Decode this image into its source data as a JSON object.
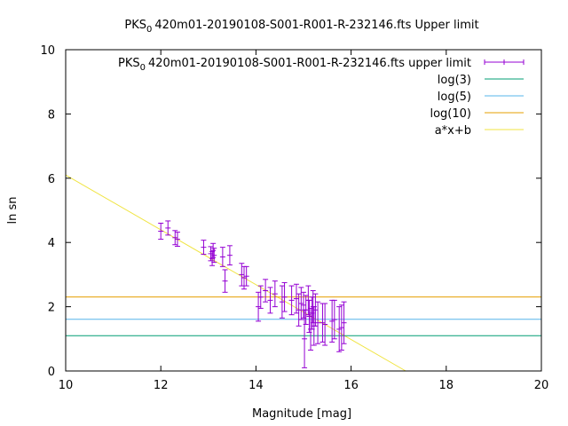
{
  "chart_data": {
    "type": "scatter",
    "title_parts": [
      "PKS",
      "0",
      "420m01-20190108-S001-R001-R-232146.fts Upper limit"
    ],
    "xlabel": "Magnitude [mag]",
    "ylabel": "ln sn",
    "xlim": [
      10,
      20
    ],
    "ylim": [
      0,
      10
    ],
    "xticks": [
      "10",
      "12",
      "14",
      "16",
      "18",
      "20"
    ],
    "yticks": [
      "0",
      "2",
      "4",
      "6",
      "8",
      "10"
    ],
    "grid": false,
    "legend_position": "top-right",
    "legend": [
      {
        "parts": [
          "PKS",
          "0",
          "420m01-20190108-S001-R001-R-232146.fts upper limit"
        ],
        "color": "#9400d3",
        "style": "errorbar"
      },
      {
        "parts": [
          "log(3)"
        ],
        "color": "#009e73",
        "style": "line"
      },
      {
        "parts": [
          "log(5)"
        ],
        "color": "#56b4e9",
        "style": "line"
      },
      {
        "parts": [
          "log(10)"
        ],
        "color": "#e69f00",
        "style": "line"
      },
      {
        "parts": [
          "a*x+b"
        ],
        "color": "#f0e442",
        "style": "line"
      }
    ],
    "series": [
      {
        "color": "#9400d3",
        "points": [
          {
            "x": 12.0,
            "y": 4.35,
            "dy": 0.25
          },
          {
            "x": 12.15,
            "y": 4.45,
            "dy": 0.22
          },
          {
            "x": 12.3,
            "y": 4.15,
            "dy": 0.22
          },
          {
            "x": 12.35,
            "y": 4.1,
            "dy": 0.22
          },
          {
            "x": 12.9,
            "y": 3.85,
            "dy": 0.22
          },
          {
            "x": 13.05,
            "y": 3.65,
            "dy": 0.22
          },
          {
            "x": 13.08,
            "y": 3.5,
            "dy": 0.22
          },
          {
            "x": 13.1,
            "y": 3.75,
            "dy": 0.22
          },
          {
            "x": 13.12,
            "y": 3.6,
            "dy": 0.22
          },
          {
            "x": 13.3,
            "y": 3.55,
            "dy": 0.3
          },
          {
            "x": 13.35,
            "y": 2.8,
            "dy": 0.35
          },
          {
            "x": 13.45,
            "y": 3.6,
            "dy": 0.3
          },
          {
            "x": 13.7,
            "y": 3.0,
            "dy": 0.35
          },
          {
            "x": 13.75,
            "y": 2.9,
            "dy": 0.35
          },
          {
            "x": 13.8,
            "y": 2.95,
            "dy": 0.3
          },
          {
            "x": 14.05,
            "y": 2.0,
            "dy": 0.45
          },
          {
            "x": 14.1,
            "y": 2.3,
            "dy": 0.35
          },
          {
            "x": 14.2,
            "y": 2.5,
            "dy": 0.35
          },
          {
            "x": 14.3,
            "y": 2.2,
            "dy": 0.4
          },
          {
            "x": 14.4,
            "y": 2.4,
            "dy": 0.4
          },
          {
            "x": 14.55,
            "y": 2.15,
            "dy": 0.5
          },
          {
            "x": 14.6,
            "y": 2.3,
            "dy": 0.45
          },
          {
            "x": 14.75,
            "y": 2.2,
            "dy": 0.45
          },
          {
            "x": 14.85,
            "y": 2.25,
            "dy": 0.45
          },
          {
            "x": 14.9,
            "y": 1.9,
            "dy": 0.5
          },
          {
            "x": 14.95,
            "y": 2.1,
            "dy": 0.5
          },
          {
            "x": 15.0,
            "y": 2.05,
            "dy": 0.4
          },
          {
            "x": 15.02,
            "y": 1.0,
            "dy": 0.9
          },
          {
            "x": 15.05,
            "y": 1.9,
            "dy": 0.45
          },
          {
            "x": 15.1,
            "y": 2.2,
            "dy": 0.45
          },
          {
            "x": 15.12,
            "y": 1.7,
            "dy": 0.5
          },
          {
            "x": 15.15,
            "y": 1.3,
            "dy": 0.65
          },
          {
            "x": 15.18,
            "y": 1.8,
            "dy": 0.5
          },
          {
            "x": 15.2,
            "y": 2.0,
            "dy": 0.5
          },
          {
            "x": 15.22,
            "y": 1.4,
            "dy": 0.6
          },
          {
            "x": 15.25,
            "y": 1.9,
            "dy": 0.5
          },
          {
            "x": 15.3,
            "y": 1.5,
            "dy": 0.65
          },
          {
            "x": 15.4,
            "y": 1.5,
            "dy": 0.6
          },
          {
            "x": 15.45,
            "y": 1.45,
            "dy": 0.65
          },
          {
            "x": 15.6,
            "y": 1.55,
            "dy": 0.65
          },
          {
            "x": 15.65,
            "y": 1.6,
            "dy": 0.6
          },
          {
            "x": 15.75,
            "y": 1.3,
            "dy": 0.7
          },
          {
            "x": 15.8,
            "y": 1.35,
            "dy": 0.7
          },
          {
            "x": 15.85,
            "y": 1.5,
            "dy": 0.65
          }
        ]
      }
    ],
    "hlines": [
      {
        "name": "log(3)",
        "y": 1.0986,
        "color": "#009e73"
      },
      {
        "name": "log(5)",
        "y": 1.6094,
        "color": "#56b4e9"
      },
      {
        "name": "log(10)",
        "y": 2.3026,
        "color": "#e69f00"
      }
    ],
    "fit_line": {
      "name": "a*x+b",
      "a": -0.8534,
      "b": 14.634,
      "color": "#f0e442"
    }
  }
}
